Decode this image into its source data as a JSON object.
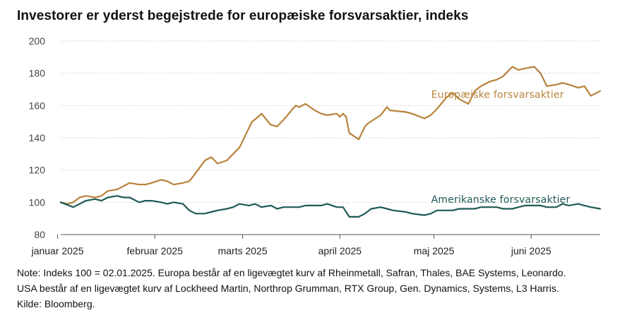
{
  "title": "Investorer er yderst begejstrede for europæiske forsvarsaktier, indeks",
  "notes": [
    "Note: Indeks 100 = 02.01.2025. Europa består af en ligevægtet kurv af Rheinmetall, Safran, Thales, BAE Systems, Leonardo.",
    "USA består af en ligevægtet kurv af Lockheed Martin, Northrop Grumman, RTX Group, Gen. Dynamics, Systems, L3 Harris.",
    "Kilde: Bloomberg."
  ],
  "colors": {
    "europe": "#b8823a",
    "usa": "#1f5a55",
    "grid": "#d6d6d6",
    "axis": "#555555"
  },
  "chart_data": {
    "type": "line",
    "title": "Investorer er yderst begejstrede for europæiske forsvarsaktier, indeks",
    "xlabel": "",
    "ylabel": "",
    "ylim": [
      80,
      200
    ],
    "y_ticks": [
      80,
      100,
      120,
      140,
      160,
      180,
      200
    ],
    "grid": "horizontal",
    "legend": "inline",
    "x_range": [
      "2025-01-02",
      "2025-06-23"
    ],
    "x_ticks": [
      {
        "date": "2025-01-01",
        "label": "januar 2025"
      },
      {
        "date": "2025-02-01",
        "label": "februar 2025"
      },
      {
        "date": "2025-03-01",
        "label": "marts 2025"
      },
      {
        "date": "2025-04-01",
        "label": "april 2025"
      },
      {
        "date": "2025-05-01",
        "label": "maj 2025"
      },
      {
        "date": "2025-06-01",
        "label": "juni 2025"
      }
    ],
    "series": [
      {
        "name": "Europæiske forsvarsaktier",
        "color": "#b8823a",
        "label_date": "2025-05-01",
        "label_value": 167,
        "x": [
          "2025-01-02",
          "2025-01-04",
          "2025-01-06",
          "2025-01-08",
          "2025-01-10",
          "2025-01-13",
          "2025-01-15",
          "2025-01-17",
          "2025-01-20",
          "2025-01-22",
          "2025-01-24",
          "2025-01-27",
          "2025-01-29",
          "2025-01-31",
          "2025-02-03",
          "2025-02-05",
          "2025-02-07",
          "2025-02-10",
          "2025-02-12",
          "2025-02-14",
          "2025-02-17",
          "2025-02-19",
          "2025-02-21",
          "2025-02-24",
          "2025-02-26",
          "2025-02-28",
          "2025-03-03",
          "2025-03-04",
          "2025-03-06",
          "2025-03-07",
          "2025-03-10",
          "2025-03-12",
          "2025-03-14",
          "2025-03-17",
          "2025-03-18",
          "2025-03-19",
          "2025-03-21",
          "2025-03-24",
          "2025-03-26",
          "2025-03-28",
          "2025-03-31",
          "2025-04-01",
          "2025-04-02",
          "2025-04-03",
          "2025-04-04",
          "2025-04-07",
          "2025-04-09",
          "2025-04-10",
          "2025-04-14",
          "2025-04-16",
          "2025-04-17",
          "2025-04-22",
          "2025-04-24",
          "2025-04-28",
          "2025-04-30",
          "2025-05-02",
          "2025-05-05",
          "2025-05-07",
          "2025-05-09",
          "2025-05-12",
          "2025-05-14",
          "2025-05-16",
          "2025-05-19",
          "2025-05-21",
          "2025-05-23",
          "2025-05-26",
          "2025-05-28",
          "2025-05-30",
          "2025-06-02",
          "2025-06-04",
          "2025-06-06",
          "2025-06-09",
          "2025-06-11",
          "2025-06-13",
          "2025-06-16",
          "2025-06-18",
          "2025-06-20",
          "2025-06-23"
        ],
        "values": [
          100,
          99,
          100,
          103,
          104,
          103,
          104,
          107,
          108,
          110,
          112,
          111,
          111,
          112,
          114,
          113,
          111,
          112,
          113,
          118,
          126,
          128,
          124,
          126,
          130,
          134,
          146,
          150,
          153,
          155,
          148,
          147,
          151,
          158,
          160,
          159,
          161,
          157,
          155,
          154,
          155,
          153,
          155,
          153,
          143,
          139,
          147,
          149,
          154,
          159,
          157,
          156,
          155,
          152,
          154,
          158,
          165,
          168,
          164,
          161,
          169,
          172,
          175,
          176,
          178,
          184,
          182,
          183,
          184,
          180,
          172,
          173,
          174,
          173,
          171,
          172,
          166,
          169
        ]
      },
      {
        "name": "Amerikanske forsvarsaktier",
        "color": "#1f5a55",
        "label_date": "2025-05-01",
        "label_value": 102,
        "x": [
          "2025-01-02",
          "2025-01-06",
          "2025-01-08",
          "2025-01-10",
          "2025-01-13",
          "2025-01-15",
          "2025-01-17",
          "2025-01-20",
          "2025-01-22",
          "2025-01-24",
          "2025-01-27",
          "2025-01-29",
          "2025-01-31",
          "2025-02-03",
          "2025-02-05",
          "2025-02-07",
          "2025-02-10",
          "2025-02-12",
          "2025-02-14",
          "2025-02-17",
          "2025-02-19",
          "2025-02-21",
          "2025-02-24",
          "2025-02-26",
          "2025-02-28",
          "2025-03-03",
          "2025-03-05",
          "2025-03-07",
          "2025-03-10",
          "2025-03-12",
          "2025-03-14",
          "2025-03-17",
          "2025-03-19",
          "2025-03-21",
          "2025-03-24",
          "2025-03-26",
          "2025-03-28",
          "2025-03-31",
          "2025-04-02",
          "2025-04-04",
          "2025-04-07",
          "2025-04-09",
          "2025-04-11",
          "2025-04-14",
          "2025-04-16",
          "2025-04-18",
          "2025-04-22",
          "2025-04-24",
          "2025-04-28",
          "2025-04-30",
          "2025-05-02",
          "2025-05-05",
          "2025-05-07",
          "2025-05-09",
          "2025-05-12",
          "2025-05-14",
          "2025-05-16",
          "2025-05-19",
          "2025-05-21",
          "2025-05-23",
          "2025-05-26",
          "2025-05-28",
          "2025-05-30",
          "2025-06-02",
          "2025-06-04",
          "2025-06-06",
          "2025-06-09",
          "2025-06-11",
          "2025-06-13",
          "2025-06-16",
          "2025-06-18",
          "2025-06-20",
          "2025-06-23"
        ],
        "values": [
          100,
          97,
          99,
          101,
          102,
          101,
          103,
          104,
          103,
          103,
          100,
          101,
          101,
          100,
          99,
          100,
          99,
          95,
          93,
          93,
          94,
          95,
          96,
          97,
          99,
          98,
          99,
          97,
          98,
          96,
          97,
          97,
          97,
          98,
          98,
          98,
          99,
          97,
          97,
          91,
          91,
          93,
          96,
          97,
          96,
          95,
          94,
          93,
          92,
          93,
          95,
          95,
          95,
          96,
          96,
          96,
          97,
          97,
          97,
          96,
          96,
          97,
          98,
          98,
          98,
          97,
          97,
          99,
          98,
          99,
          98,
          97,
          96
        ]
      }
    ]
  }
}
